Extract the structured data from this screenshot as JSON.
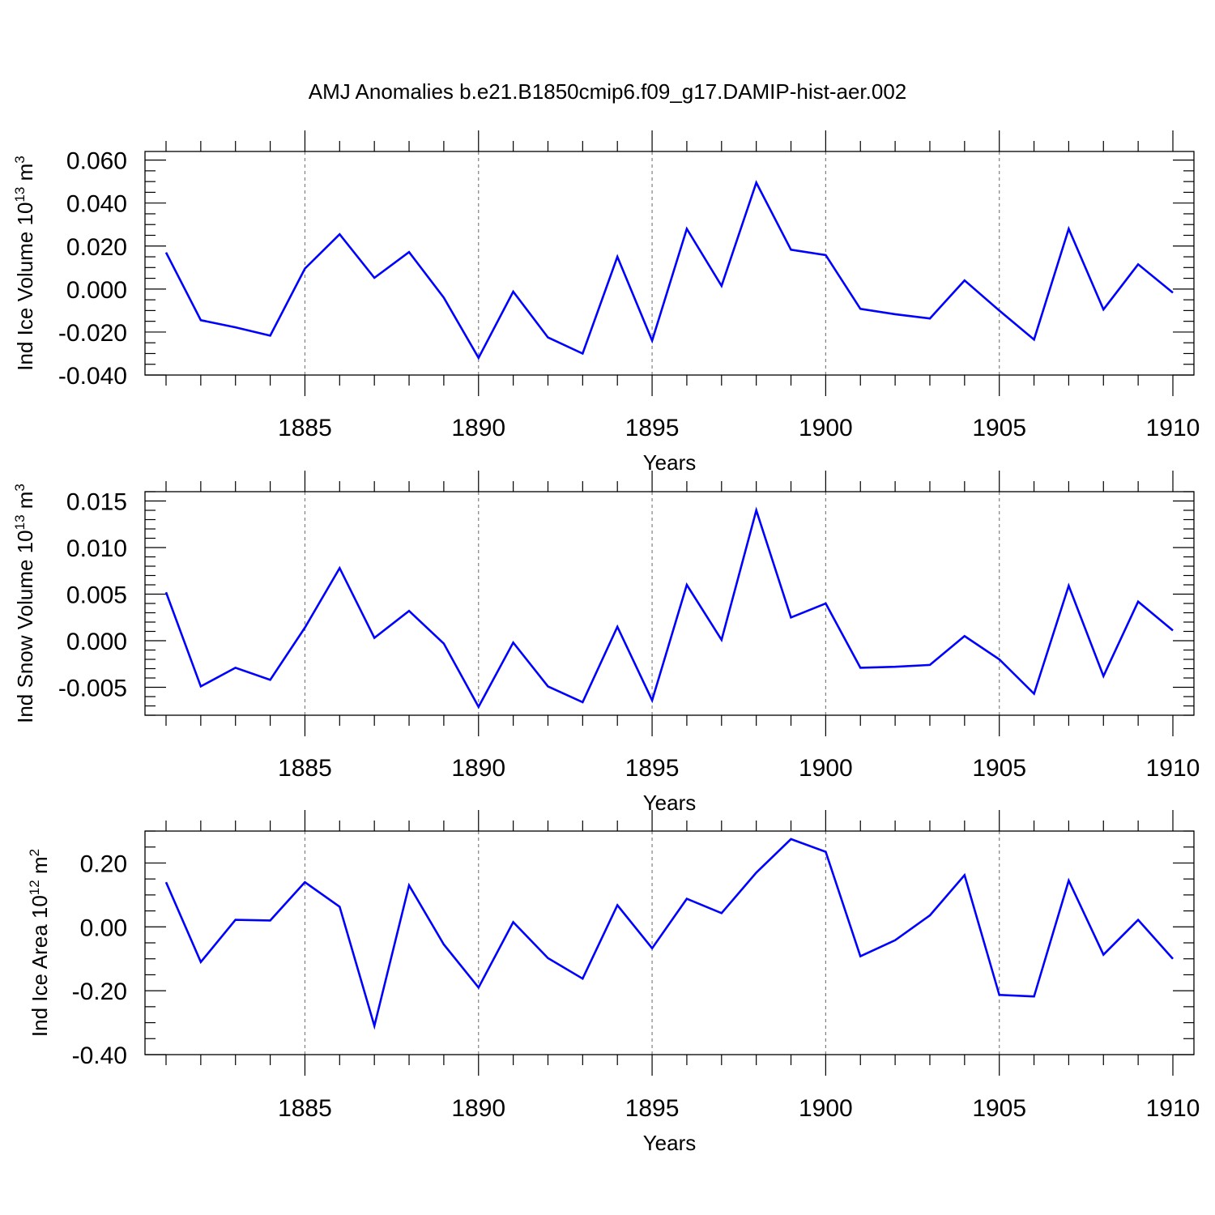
{
  "title": "AMJ Anomalies b.e21.B1850cmip6.f09_g17.DAMIP-hist-aer.002",
  "colors": {
    "line": "#0000ff",
    "axis": "#000000",
    "grid": "#808080"
  },
  "chart_data": [
    {
      "type": "line",
      "name": "ice-volume",
      "ylabel_base": "Ind Ice Volume 10",
      "ylabel_exp": "13",
      "ylabel_unit": " m",
      "ylabel_unit_exp": "3",
      "xlabel": "Years",
      "xlim": [
        1881,
        1910
      ],
      "ylim": [
        -0.04,
        0.064
      ],
      "y_ticks": [
        0.06,
        0.04,
        0.02,
        0.0,
        -0.02,
        -0.04
      ],
      "y_tick_labels": [
        "0.060",
        "0.040",
        "0.020",
        "0.000",
        "-0.020",
        "-0.040"
      ],
      "y_minor_step": 0.005,
      "x_ticks": [
        1885,
        1890,
        1895,
        1900,
        1905,
        1910
      ],
      "x_tick_labels": [
        "1885",
        "1890",
        "1895",
        "1900",
        "1905",
        "1910"
      ],
      "x": [
        1881,
        1882,
        1883,
        1884,
        1885,
        1886,
        1887,
        1888,
        1889,
        1890,
        1891,
        1892,
        1893,
        1894,
        1895,
        1896,
        1897,
        1898,
        1899,
        1900,
        1901,
        1902,
        1903,
        1904,
        1905,
        1906,
        1907,
        1908,
        1909,
        1910
      ],
      "values": [
        0.017,
        -0.0145,
        -0.0178,
        -0.0217,
        0.0095,
        0.0255,
        0.0052,
        0.0172,
        -0.004,
        -0.032,
        -0.0012,
        -0.0225,
        -0.03,
        0.015,
        -0.024,
        0.028,
        0.0015,
        0.0495,
        0.0183,
        0.0158,
        -0.0092,
        -0.0117,
        -0.0137,
        0.004,
        -0.01,
        -0.0235,
        0.028,
        -0.0095,
        0.0115,
        -0.0017
      ]
    },
    {
      "type": "line",
      "name": "snow-volume",
      "ylabel_base": "Ind Snow Volume 10",
      "ylabel_exp": "13",
      "ylabel_unit": " m",
      "ylabel_unit_exp": "3",
      "xlabel": "Years",
      "xlim": [
        1881,
        1910
      ],
      "ylim": [
        -0.008,
        0.016
      ],
      "y_ticks": [
        0.015,
        0.01,
        0.005,
        0.0,
        -0.005
      ],
      "y_tick_labels": [
        "0.015",
        "0.010",
        "0.005",
        "0.000",
        "-0.005"
      ],
      "y_minor_step": 0.001,
      "x_ticks": [
        1885,
        1890,
        1895,
        1900,
        1905,
        1910
      ],
      "x_tick_labels": [
        "1885",
        "1890",
        "1895",
        "1900",
        "1905",
        "1910"
      ],
      "x": [
        1881,
        1882,
        1883,
        1884,
        1885,
        1886,
        1887,
        1888,
        1889,
        1890,
        1891,
        1892,
        1893,
        1894,
        1895,
        1896,
        1897,
        1898,
        1899,
        1900,
        1901,
        1902,
        1903,
        1904,
        1905,
        1906,
        1907,
        1908,
        1909,
        1910
      ],
      "values": [
        0.0052,
        -0.0049,
        -0.0029,
        -0.0042,
        0.0014,
        0.0078,
        0.0003,
        0.0032,
        -0.0003,
        -0.0071,
        -0.0002,
        -0.0049,
        -0.0066,
        0.0015,
        -0.0064,
        0.006,
        0.0001,
        0.014,
        0.0025,
        0.004,
        -0.0029,
        -0.0028,
        -0.0026,
        0.0005,
        -0.002,
        -0.0057,
        0.0059,
        -0.0038,
        0.0042,
        0.0011
      ]
    },
    {
      "type": "line",
      "name": "ice-area",
      "ylabel_base": "Ind Ice Area 10",
      "ylabel_exp": "12",
      "ylabel_unit": " m",
      "ylabel_unit_exp": "2",
      "xlabel": "Years",
      "xlim": [
        1881,
        1910
      ],
      "ylim": [
        -0.4,
        0.3
      ],
      "y_ticks": [
        0.2,
        0.0,
        -0.2,
        -0.4
      ],
      "y_tick_labels": [
        "0.20",
        "0.00",
        "-0.20",
        "-0.40"
      ],
      "y_minor_step": 0.05,
      "x_ticks": [
        1885,
        1890,
        1895,
        1900,
        1905,
        1910
      ],
      "x_tick_labels": [
        "1885",
        "1890",
        "1895",
        "1900",
        "1905",
        "1910"
      ],
      "x": [
        1881,
        1882,
        1883,
        1884,
        1885,
        1886,
        1887,
        1888,
        1889,
        1890,
        1891,
        1892,
        1893,
        1894,
        1895,
        1896,
        1897,
        1898,
        1899,
        1900,
        1901,
        1902,
        1903,
        1904,
        1905,
        1906,
        1907,
        1908,
        1909,
        1910
      ],
      "values": [
        0.14,
        -0.11,
        0.022,
        0.02,
        0.14,
        0.063,
        -0.31,
        0.13,
        -0.055,
        -0.19,
        0.015,
        -0.098,
        -0.162,
        0.068,
        -0.067,
        0.088,
        0.043,
        0.17,
        0.275,
        0.235,
        -0.092,
        -0.042,
        0.036,
        0.162,
        -0.213,
        -0.218,
        0.145,
        -0.087,
        0.022,
        -0.1
      ]
    }
  ]
}
